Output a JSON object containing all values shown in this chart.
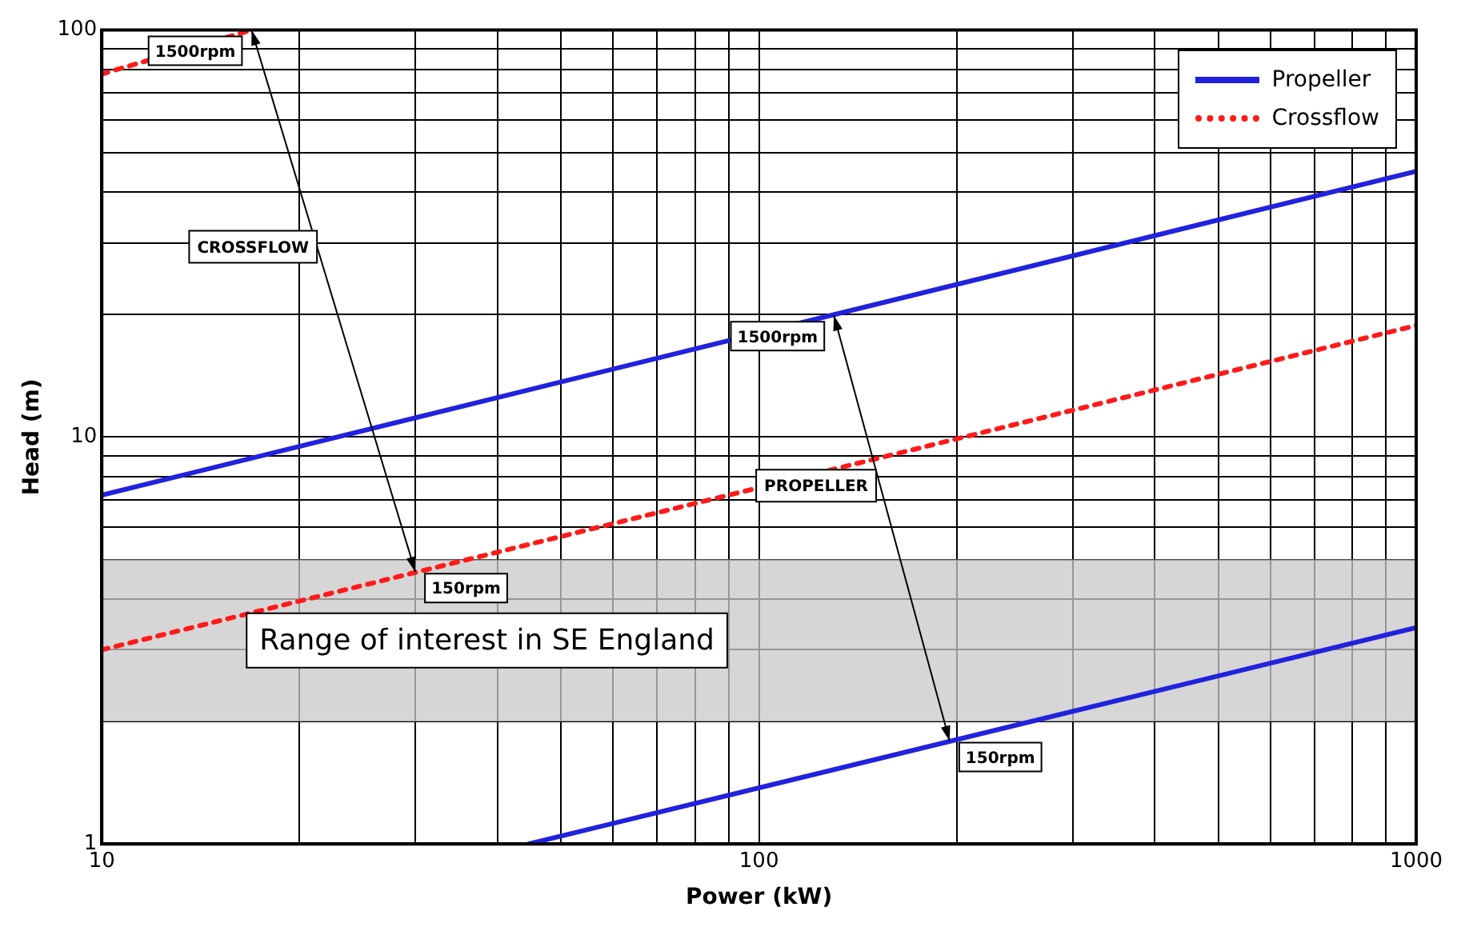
{
  "chart_data": {
    "type": "line",
    "xlabel": "Power (kW)",
    "ylabel": "Head (m)",
    "log": "xy",
    "grid": true,
    "legend": "top right",
    "line_style": "solid",
    "marker": "none",
    "xlim": [
      10,
      1000
    ],
    "ylim": [
      1,
      100
    ],
    "xticks": [
      10,
      {
        "value": 20,
        "label": null
      },
      {
        "value": 30,
        "label": null
      },
      {
        "value": 40,
        "label": null
      },
      {
        "value": 50,
        "label": null
      },
      {
        "value": 60,
        "label": null
      },
      {
        "value": 70,
        "label": null
      },
      {
        "value": 80,
        "label": null
      },
      {
        "value": 90,
        "label": null
      },
      100,
      {
        "value": 200,
        "label": null
      },
      {
        "value": 300,
        "label": null
      },
      {
        "value": 400,
        "label": null
      },
      {
        "value": 500,
        "label": null
      },
      {
        "value": 600,
        "label": null
      },
      {
        "value": 700,
        "label": null
      },
      {
        "value": 800,
        "label": null
      },
      {
        "value": 900,
        "label": null
      },
      1000
    ],
    "yticks": [
      1,
      {
        "value": 2,
        "label": null
      },
      {
        "value": 3,
        "label": null
      },
      {
        "value": 4,
        "label": null
      },
      {
        "value": 5,
        "label": null
      },
      {
        "value": 6,
        "label": null
      },
      {
        "value": 7,
        "label": null
      },
      {
        "value": 8,
        "label": null
      },
      {
        "value": 9,
        "label": null
      },
      10,
      {
        "value": 20,
        "label": null
      },
      {
        "value": 30,
        "label": null
      },
      {
        "value": 40,
        "label": null
      },
      {
        "value": 50,
        "label": null
      },
      {
        "value": 60,
        "label": null
      },
      {
        "value": 70,
        "label": null
      },
      {
        "value": 80,
        "label": null
      },
      {
        "value": 90,
        "label": null
      },
      100
    ],
    "series": [
      {
        "name": "Propeller",
        "color": "#2222dd",
        "type": "line",
        "x": [
          10,
          1000
        ],
        "values": [
          7.2,
          45
        ]
      },
      {
        "color": "#2222dd",
        "type": "line",
        "x": [
          44.6,
          1000
        ],
        "values": [
          1,
          3.4
        ]
      },
      {
        "name": "Crossflow",
        "color": "#ff1a1a",
        "type": "line",
        "line_style": "dotted",
        "x": [
          10,
          1000
        ],
        "values": [
          3,
          18.8
        ]
      },
      {
        "color": "#ff1a1a",
        "type": "line",
        "line_style": "dotted",
        "x": [
          10,
          16.9
        ],
        "values": [
          78,
          100
        ]
      }
    ],
    "bands": [
      {
        "axis": "y",
        "from": 2,
        "to": 5,
        "label": "Range of interest in SE England",
        "color": "#c8c8c8"
      }
    ],
    "annotations": [
      "CROSSFLOW",
      "PROPELLER",
      {
        "text": "1500rpm",
        "x": 16.9,
        "y": 100
      },
      {
        "text": "150rpm",
        "x": 30,
        "y": 4.66
      },
      {
        "text": "1500rpm",
        "x": 130,
        "y": 19.9
      },
      {
        "text": "150rpm",
        "x": 195,
        "y": 1.79
      }
    ]
  }
}
